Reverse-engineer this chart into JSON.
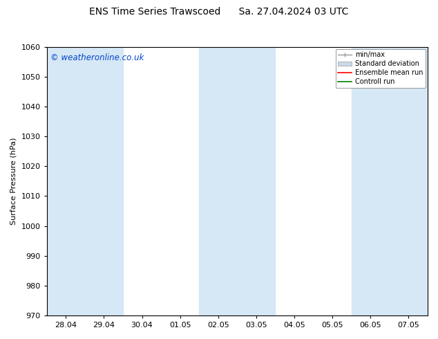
{
  "title_left": "ENS Time Series Trawscoed",
  "title_right": "Sa. 27.04.2024 03 UTC",
  "ylabel": "Surface Pressure (hPa)",
  "ylim": [
    970,
    1060
  ],
  "yticks": [
    970,
    980,
    990,
    1000,
    1010,
    1020,
    1030,
    1040,
    1050,
    1060
  ],
  "xtick_positions": [
    0,
    1,
    2,
    3,
    4,
    5,
    6,
    7,
    8,
    9
  ],
  "xtick_labels": [
    "28.04",
    "29.04",
    "30.04",
    "01.05",
    "02.05",
    "03.05",
    "04.05",
    "05.05",
    "06.05",
    "07.05"
  ],
  "xlim": [
    -0.5,
    9.5
  ],
  "watermark": "© weatheronline.co.uk",
  "legend_entries": [
    "min/max",
    "Standard deviation",
    "Ensemble mean run",
    "Controll run"
  ],
  "shaded_bands": [
    {
      "x_start": -0.5,
      "x_end": 0.5,
      "color": "#d6e8f5"
    },
    {
      "x_start": 0.5,
      "x_end": 1.5,
      "color": "#d6e8f5"
    },
    {
      "x_start": 3.5,
      "x_end": 4.5,
      "color": "#d6e8f5"
    },
    {
      "x_start": 4.5,
      "x_end": 5.5,
      "color": "#d6e8f5"
    },
    {
      "x_start": 7.5,
      "x_end": 8.5,
      "color": "#d6e8f5"
    },
    {
      "x_start": 8.5,
      "x_end": 9.5,
      "color": "#d6e8f5"
    }
  ],
  "bg_color": "#ffffff",
  "plot_bg_color": "#ffffff",
  "legend_color_minmax": "#aaaaaa",
  "legend_color_std": "#c8daea",
  "legend_color_ensemble": "#ff0000",
  "legend_color_control": "#008000",
  "title_fontsize": 10,
  "label_fontsize": 8,
  "tick_fontsize": 8,
  "watermark_fontsize": 8.5,
  "legend_fontsize": 7
}
